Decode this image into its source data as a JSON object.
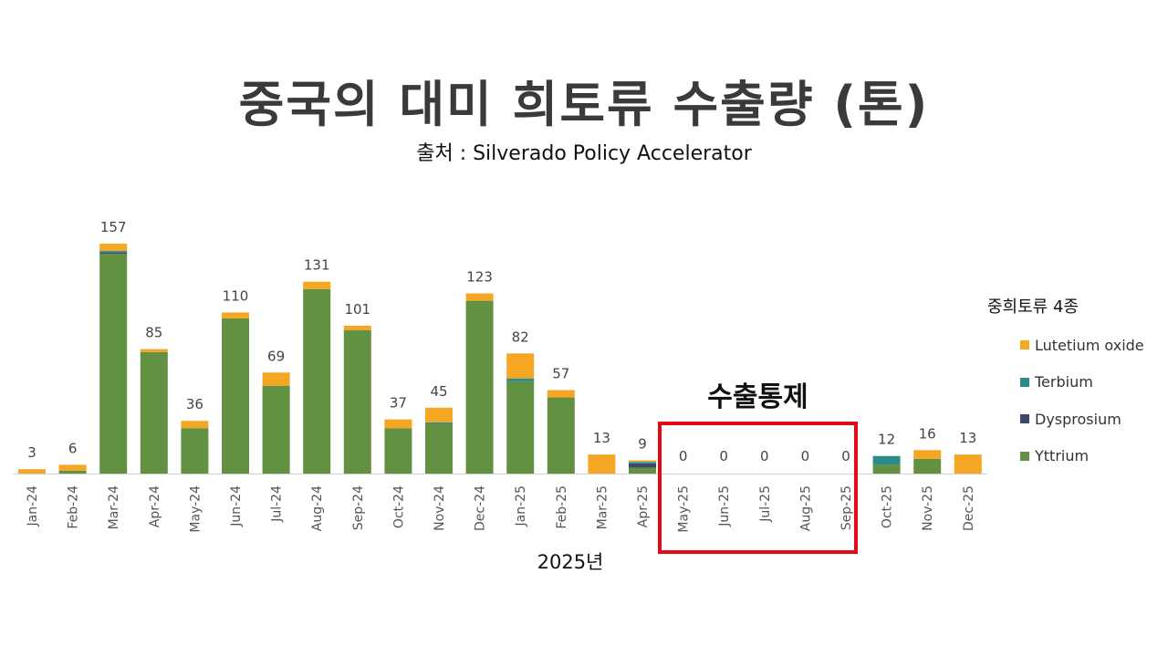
{
  "header": {
    "title": "중국의 대미 희토류 수출량 (톤)",
    "source": "출처 : Silverado Policy Accelerator"
  },
  "annotation": {
    "label": "수출통제",
    "box_color": "#e50914"
  },
  "xaxis_note": "2025년",
  "legend": {
    "title": "중희토류 4종",
    "items": [
      {
        "label": "Lutetium oxide",
        "color": "#f5a623"
      },
      {
        "label": "Terbium",
        "color": "#2e8b8b"
      },
      {
        "label": "Dysprosium",
        "color": "#3b4a6b"
      },
      {
        "label": "Yttrium",
        "color": "#629142"
      }
    ]
  },
  "chart_data": {
    "type": "bar",
    "stacked": true,
    "categories": [
      "Jan-24",
      "Feb-24",
      "Mar-24",
      "Apr-24",
      "May-24",
      "Jun-24",
      "Jul-24",
      "Aug-24",
      "Sep-24",
      "Oct-24",
      "Nov-24",
      "Dec-24",
      "Jan-25",
      "Feb-25",
      "Mar-25",
      "Apr-25",
      "May-25",
      "Jun-25",
      "Jul-25",
      "Aug-25",
      "Sep-25",
      "Oct-25",
      "Nov-25",
      "Dec-25"
    ],
    "totals": [
      3,
      6,
      157,
      85,
      36,
      110,
      69,
      131,
      101,
      37,
      45,
      123,
      82,
      57,
      13,
      9,
      0,
      0,
      0,
      0,
      0,
      12,
      16,
      13
    ],
    "series": [
      {
        "name": "Yttrium",
        "color": "#629142",
        "values": [
          0,
          2,
          150,
          83,
          31,
          106,
          60,
          126,
          98,
          31,
          34,
          118,
          63,
          52,
          0,
          4,
          0,
          0,
          0,
          0,
          0,
          6,
          10,
          0
        ]
      },
      {
        "name": "Dysprosium",
        "color": "#3b4a6b",
        "values": [
          0,
          0,
          1,
          0,
          0,
          0,
          0,
          0,
          0,
          0,
          0,
          0,
          0,
          0,
          0,
          3,
          0,
          0,
          0,
          0,
          0,
          0,
          0,
          0
        ]
      },
      {
        "name": "Terbium",
        "color": "#2e8b8b",
        "values": [
          0,
          0,
          1,
          0,
          0,
          0,
          0,
          0,
          0,
          0,
          1,
          0,
          2,
          0,
          0,
          1,
          0,
          0,
          0,
          0,
          0,
          6,
          0,
          0
        ]
      },
      {
        "name": "Lutetium oxide",
        "color": "#f5a623",
        "values": [
          3,
          4,
          5,
          2,
          5,
          4,
          9,
          5,
          3,
          6,
          10,
          5,
          17,
          5,
          13,
          1,
          0,
          0,
          0,
          0,
          0,
          0,
          6,
          13
        ]
      }
    ],
    "grid": false,
    "legend_position": "right"
  }
}
